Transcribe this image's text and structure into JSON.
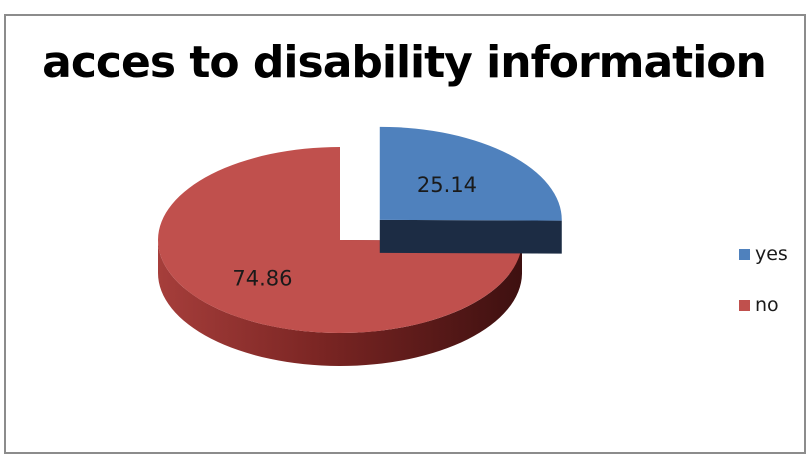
{
  "chart_data": {
    "type": "pie",
    "title": "acces to disability information",
    "categories": [
      "yes",
      "no"
    ],
    "values": [
      25.14,
      74.86
    ],
    "colors": [
      "#4F81BD",
      "#C0504D"
    ],
    "data_labels": [
      "25.14",
      "74.86"
    ],
    "exploded": "yes",
    "style": "3d",
    "legend_position": "right"
  }
}
